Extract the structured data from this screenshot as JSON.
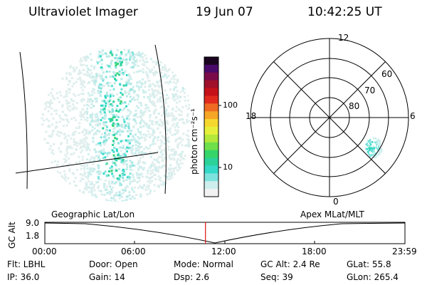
{
  "header": {
    "instrument": "Ultraviolet Imager",
    "date": "19 Jun 07",
    "time": "10:42:25 UT"
  },
  "colorbar": {
    "label": "photon cm⁻²s⁻¹",
    "ticks": [
      "100",
      "10"
    ],
    "colors": [
      "#f2f2f2",
      "#cdeeed",
      "#7de3dd",
      "#34d9c8",
      "#2bd39a",
      "#35d56a",
      "#6ee04a",
      "#b4e83a",
      "#e6f03a",
      "#f5d82e",
      "#f6a626",
      "#ef6a22",
      "#e02a1e",
      "#c5121a",
      "#a0102a",
      "#7a0c4a",
      "#4a0a6a",
      "#1a0520"
    ]
  },
  "polar": {
    "mlt_labels": [
      "12",
      "18",
      "6",
      "0"
    ],
    "lat_labels": [
      "60",
      "70",
      "80"
    ]
  },
  "timeline": {
    "y_label": "GC Alt",
    "y_ticks": [
      "9.0",
      "1.8"
    ],
    "left_title": "Geographic Lat/Lon",
    "right_title": "Apex  MLat/MLT",
    "x_ticks": [
      "00:00",
      "06:00",
      "12:00",
      "18:00",
      "23:59"
    ],
    "current_time_fraction": 0.4461
  },
  "info": {
    "row1": [
      "Flt: LBHL",
      "Door: Open",
      "Mode: Normal",
      "GC Alt: 2.4 Re",
      "GLat:  55.8"
    ],
    "row2": [
      "IP: 36.0",
      "Gain: 14",
      "Dsp:     2.6",
      "Seq: 39",
      "GLon: 265.4"
    ]
  }
}
